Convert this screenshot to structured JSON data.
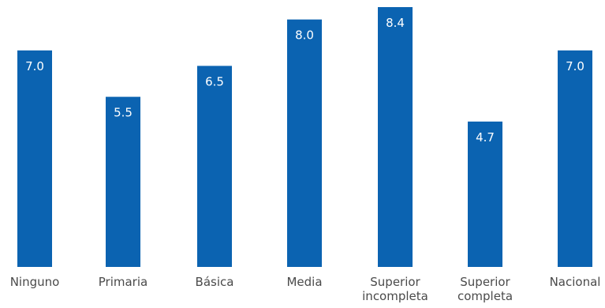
{
  "chart_data": {
    "type": "bar",
    "title": "",
    "xlabel": "",
    "ylabel": "",
    "categories": [
      [
        "Ninguno"
      ],
      [
        "Primaria"
      ],
      [
        "Básica"
      ],
      [
        "Media"
      ],
      [
        "Superior",
        "incompleta"
      ],
      [
        "Superior",
        "completa"
      ],
      [
        "Nacional"
      ]
    ],
    "values": [
      7.0,
      5.5,
      6.5,
      8.0,
      8.4,
      4.7,
      7.0
    ],
    "value_labels": [
      "7.0",
      "5.5",
      "6.5",
      "8.0",
      "8.4",
      "4.7",
      "7.0"
    ],
    "ylim": [
      0,
      8.4
    ],
    "grid": false,
    "legend": "none",
    "bar_color": "#0b63b1"
  }
}
